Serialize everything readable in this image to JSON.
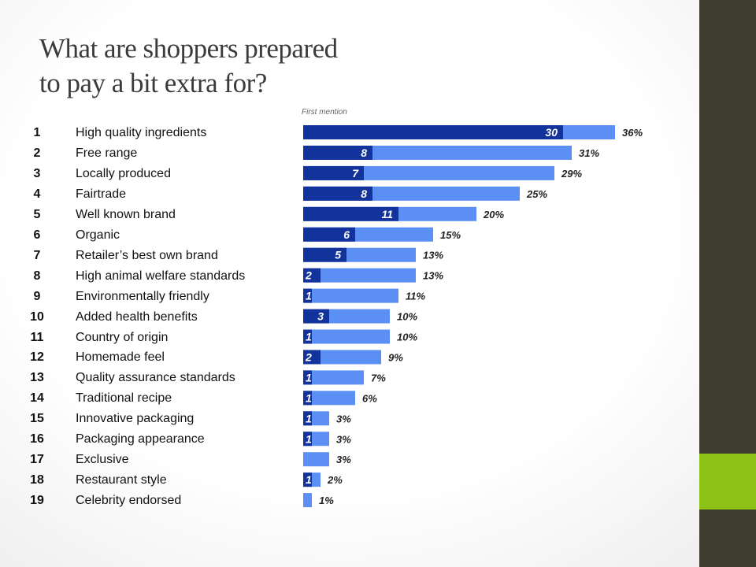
{
  "title_line1": "What are shoppers prepared",
  "title_line2": "to pay a bit extra for?",
  "colors": {
    "total_bar": "#5b8ff3",
    "first_mention_bar": "#12339b",
    "sidebar": "#3d3c2f",
    "accent": "#8dc216"
  },
  "chart_data": {
    "type": "bar",
    "orientation": "horizontal",
    "stacked_overlay": true,
    "legend_label": "First mention",
    "ranks": [
      "1",
      "2",
      "3",
      "4",
      "5",
      "6",
      "7",
      "8",
      "9",
      "10",
      "11",
      "12",
      "13",
      "14",
      "15",
      "16",
      "17",
      "18",
      "19"
    ],
    "categories": [
      "High quality ingredients",
      "Free range",
      "Locally produced",
      "Fairtrade",
      "Well known brand",
      "Organic",
      "Retailer’s best own brand",
      "High animal welfare standards",
      "Environmentally friendly",
      "Added health benefits",
      "Country of origin",
      "Homemade feel",
      "Quality assurance standards",
      "Traditional recipe",
      "Innovative packaging",
      "Packaging appearance",
      "Exclusive",
      "Restaurant style",
      "Celebrity endorsed"
    ],
    "series": [
      {
        "name": "First mention",
        "values": [
          30,
          8,
          7,
          8,
          11,
          6,
          5,
          2,
          1,
          3,
          1,
          2,
          1,
          1,
          1,
          1,
          0,
          1,
          0
        ],
        "labels": [
          "30",
          "8",
          "7",
          "8",
          "11",
          "6",
          "5",
          "2",
          "1",
          "3",
          "1",
          "2",
          "1",
          "1",
          "1",
          "1",
          "",
          "1",
          ""
        ]
      },
      {
        "values": [
          36,
          31,
          29,
          25,
          20,
          15,
          13,
          13,
          11,
          10,
          10,
          9,
          7,
          6,
          3,
          3,
          3,
          2,
          1
        ],
        "labels": [
          "36%",
          "31%",
          "29%",
          "25%",
          "20%",
          "15%",
          "13%",
          "13%",
          "11%",
          "10%",
          "10%",
          "9%",
          "7%",
          "6%",
          "3%",
          "3%",
          "3%",
          "2%",
          "1%"
        ]
      }
    ],
    "xlim": [
      0,
      36
    ]
  }
}
